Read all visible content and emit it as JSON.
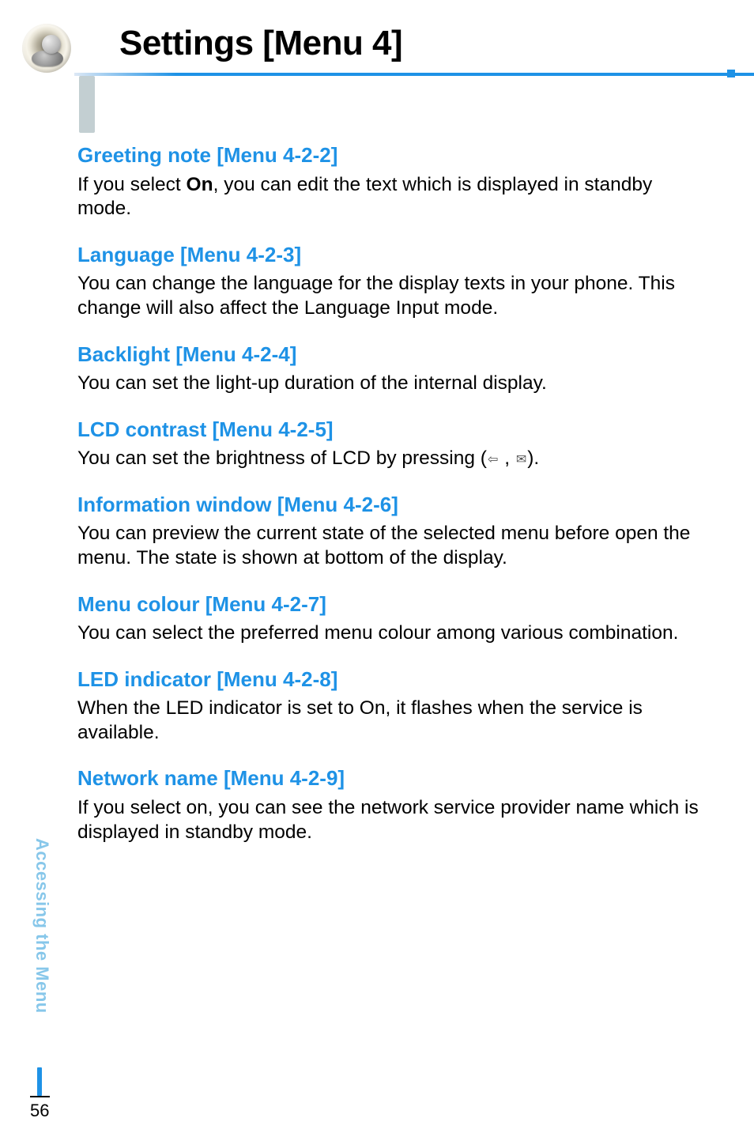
{
  "header": {
    "title": "Settings [Menu 4]"
  },
  "colors": {
    "accent": "#1e92e6",
    "side_label": "#87c7ea",
    "text": "#000000",
    "bg": "#ffffff",
    "left_bar": "#c3cfd2"
  },
  "sections": [
    {
      "heading": "Greeting note [Menu 4-2-2]",
      "body_pre": "If you select ",
      "body_bold": "On",
      "body_post": ", you can edit the text which is displayed in standby mode."
    },
    {
      "heading": "Language [Menu 4-2-3]",
      "body": "You can change the language for the display texts in your phone. This change will also affect the Language Input mode."
    },
    {
      "heading": "Backlight [Menu 4-2-4]",
      "body": "You can set the light-up duration of the internal display."
    },
    {
      "heading": "LCD contrast [Menu 4-2-5]",
      "body_pre": "You can set the brightness of LCD by pressing (",
      "sym_left": "⇦",
      "sep": " , ",
      "sym_right": "✉",
      "body_post": ")."
    },
    {
      "heading": "Information window [Menu 4-2-6]",
      "body": "You can preview the current state of the selected menu before open the menu. The state is shown at bottom of the display."
    },
    {
      "heading": "Menu colour [Menu 4-2-7]",
      "body": "You can select the preferred menu colour among various combination."
    },
    {
      "heading": "LED indicator [Menu 4-2-8]",
      "body": "When the LED indicator is set to On, it flashes when the service is available."
    },
    {
      "heading": "Network name [Menu 4-2-9]",
      "body": "If you select on, you can see the network service provider name which is displayed in standby mode."
    }
  ],
  "side_label": "Accessing the Menu",
  "page_number": "56"
}
